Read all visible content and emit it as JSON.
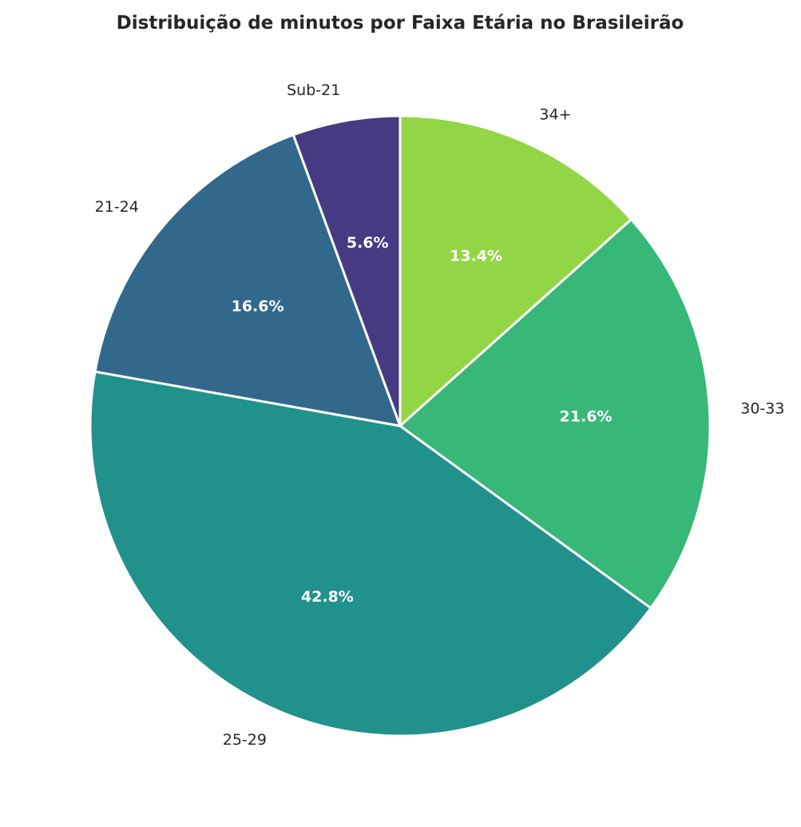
{
  "chart_data": {
    "type": "pie",
    "title": "Distribuição de minutos por Faixa Etária no Brasileirão",
    "start_angle_deg": 90,
    "direction": "clockwise",
    "slices": [
      {
        "label": "34+",
        "value": 13.4,
        "pct_label": "13.4%",
        "color": "#93d645"
      },
      {
        "label": "30-33",
        "value": 21.6,
        "pct_label": "21.6%",
        "color": "#37b778"
      },
      {
        "label": "25-29",
        "value": 42.8,
        "pct_label": "42.8%",
        "color": "#21918c"
      },
      {
        "label": "21-24",
        "value": 16.6,
        "pct_label": "16.6%",
        "color": "#32688b"
      },
      {
        "label": "Sub-21",
        "value": 5.6,
        "pct_label": "5.6%",
        "color": "#463a82"
      }
    ]
  }
}
